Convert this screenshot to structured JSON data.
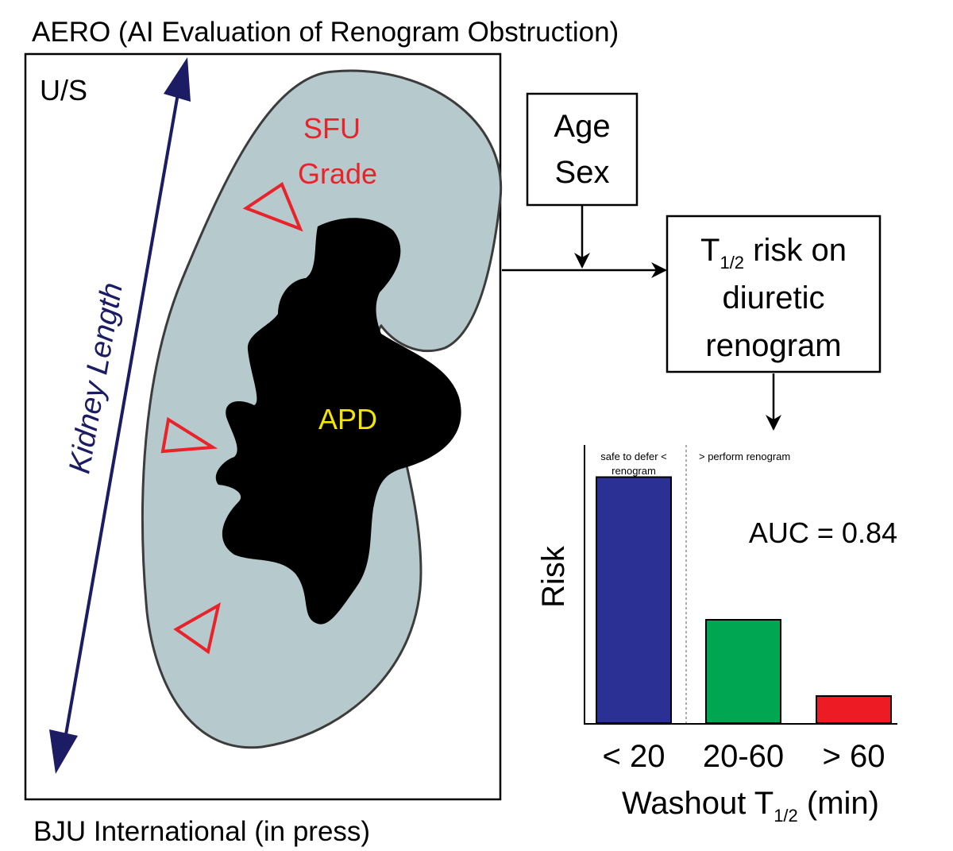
{
  "title": "AERO (AI Evaluation of Renogram Obstruction)",
  "citation": "BJU International (in press)",
  "ultrasound_panel": {
    "modality_label": "U/S",
    "sfu_label_line1": "SFU",
    "sfu_label_line2": "Grade",
    "apd_label": "APD",
    "kidney_length_label": "Kidney Length",
    "colors": {
      "kidney_fill": "#b6c9cd",
      "pelvis_fill": "#000000",
      "marker": "#e8232a",
      "arrow": "#1b1c63",
      "apd_text": "#f2e600",
      "sfu_text": "#e8232a"
    }
  },
  "covariates_box": {
    "line1": "Age",
    "line2": "Sex"
  },
  "risk_box": {
    "t_symbol": "T",
    "subscript": "1/2",
    "line1_rest": " risk on",
    "line2": "diuretic",
    "line3": "renogram"
  },
  "chart_data": {
    "type": "bar",
    "categories": [
      "< 20",
      "20-60",
      "> 60"
    ],
    "values": [
      1.0,
      0.42,
      0.11
    ],
    "colors": [
      "#2b3194",
      "#00a651",
      "#ed1c24"
    ],
    "ylabel": "Risk",
    "xlabel_main": "Washout T",
    "xlabel_sub": "1/2",
    "xlabel_unit": " (min)",
    "annotation": "AUC = 0.84",
    "zone_left_line1": "safe to defer <",
    "zone_left_line2": "renogram",
    "zone_right": "> perform renogram",
    "ylim": [
      0,
      1.05
    ]
  }
}
